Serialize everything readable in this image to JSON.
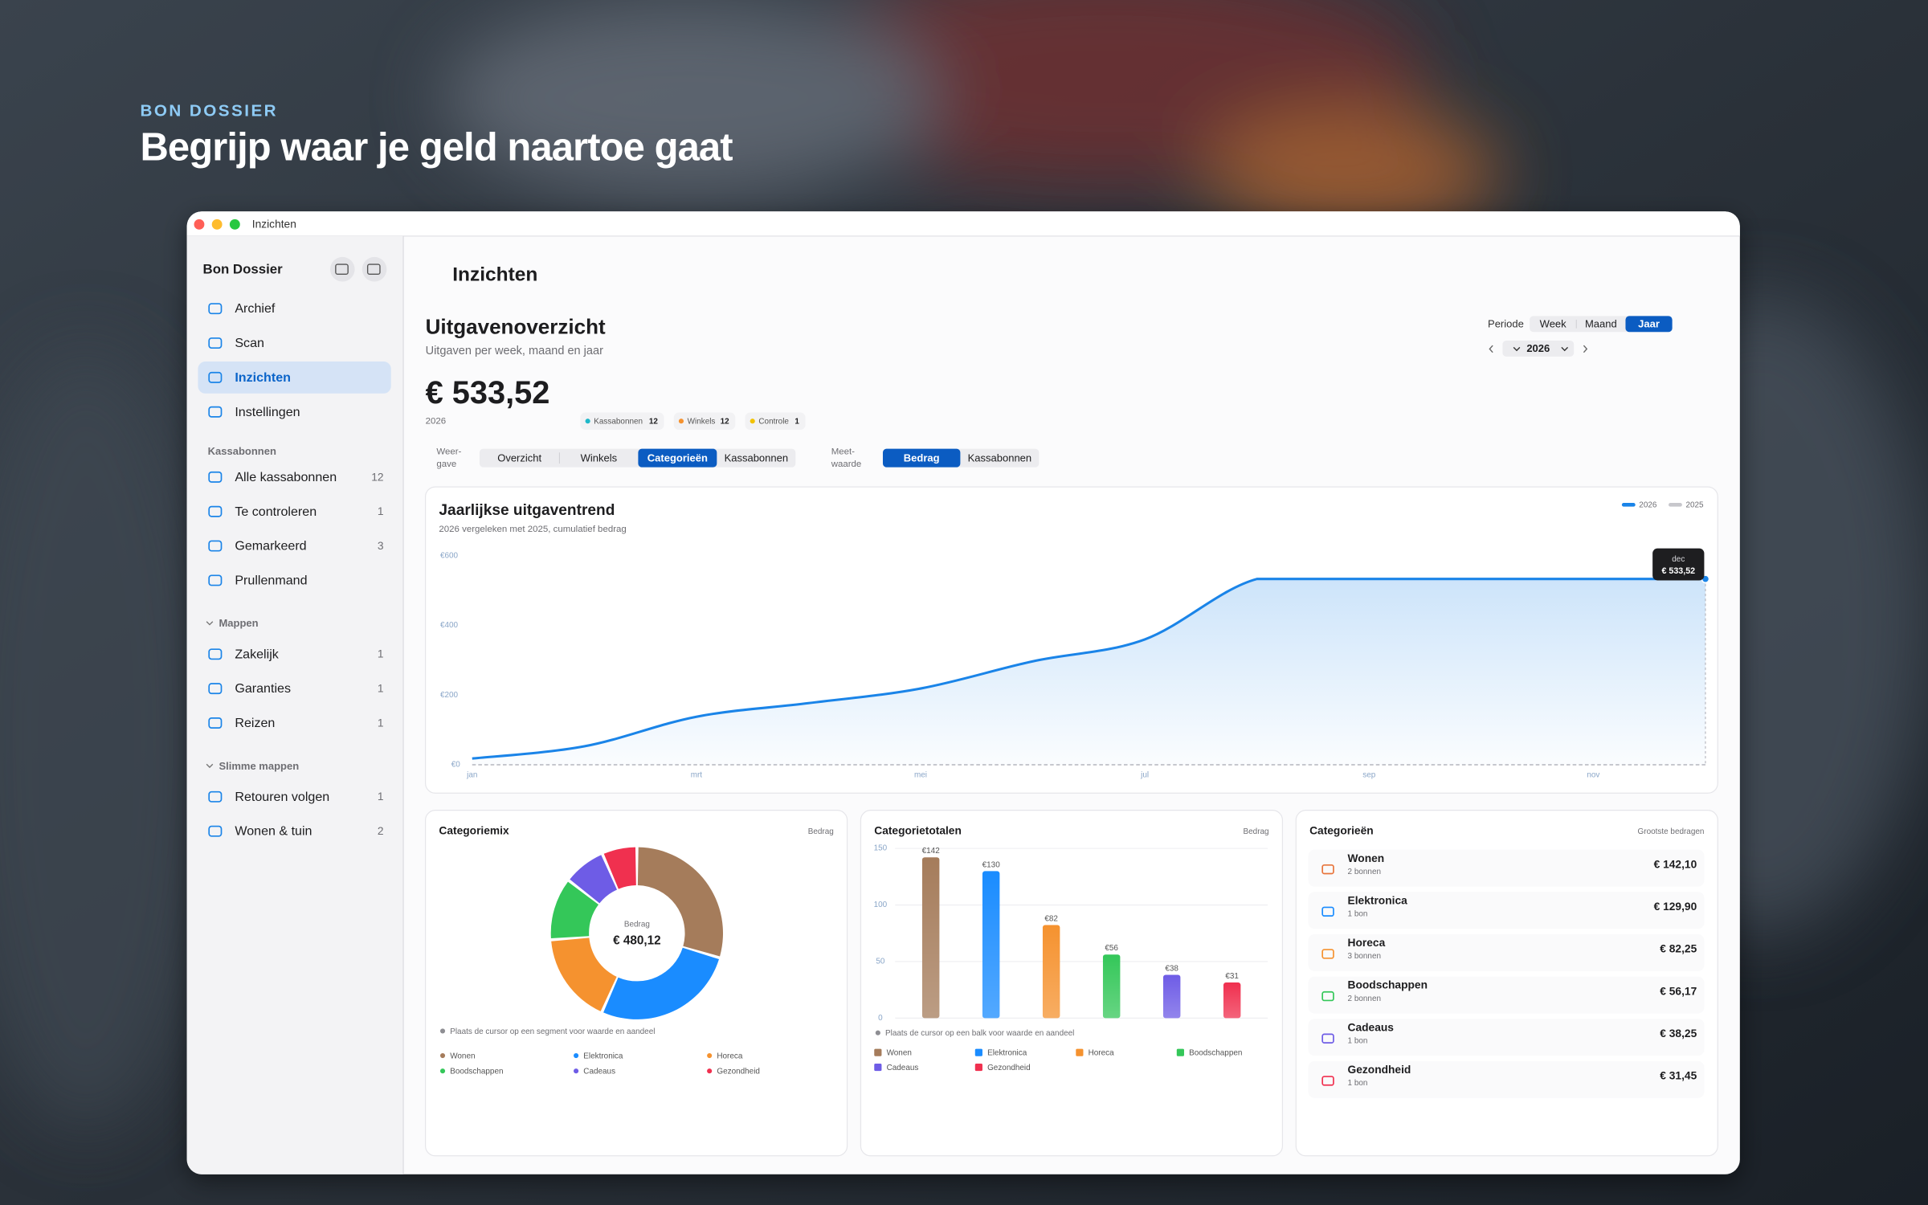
{
  "hero": {
    "eyebrow": "BON DOSSIER",
    "title": "Begrijp waar je geld naartoe gaat"
  },
  "window_title": "Inzichten",
  "sidebar": {
    "app_name": "Bon Dossier",
    "nav": [
      "Archief",
      "Scan",
      "Inzichten",
      "Instellingen"
    ],
    "sections": [
      {
        "title": "Kassabonnen",
        "items": [
          {
            "label": "Alle kassabonnen",
            "count": 12
          },
          {
            "label": "Te controleren",
            "count": 1
          },
          {
            "label": "Gemarkeerd",
            "count": 3
          },
          {
            "label": "Prullenmand"
          }
        ]
      },
      {
        "title": "Mappen",
        "items": [
          {
            "label": "Zakelijk",
            "count": 1
          },
          {
            "label": "Garanties",
            "count": 1
          },
          {
            "label": "Reizen",
            "count": 1
          }
        ]
      },
      {
        "title": "Slimme mappen",
        "items": [
          {
            "label": "Retouren volgen",
            "count": 1
          },
          {
            "label": "Wonen & tuin",
            "count": 2
          }
        ]
      }
    ]
  },
  "page": {
    "title": "Inzichten",
    "heading": "Uitgavenoverzicht",
    "subheading": "Uitgaven per week, maand en jaar",
    "period_label": "Periode",
    "period_options": [
      "Week",
      "Maand",
      "Jaar"
    ],
    "year": "2026",
    "total": "€ 533,52",
    "total_year": "2026",
    "badges": [
      {
        "label": "Kassabonnen",
        "count": 12,
        "color": "#1fb8c9"
      },
      {
        "label": "Winkels",
        "count": 12,
        "color": "#f5922f"
      },
      {
        "label": "Controle",
        "count": 1,
        "color": "#f2c200"
      }
    ],
    "view_label": [
      "Weer-",
      "gave"
    ],
    "view_options": [
      "Overzicht",
      "Winkels",
      "Categorieën",
      "Kassabonnen"
    ],
    "measure_label": [
      "Meet-",
      "waarde"
    ],
    "measure_options": [
      "Bedrag",
      "Kassabonnen"
    ]
  },
  "charts": {
    "trend": {
      "type": "line",
      "title": "Jaarlijkse uitgaventrend",
      "subtitle": "2026 vergeleken met 2025, cumulatief bedrag",
      "categories": [
        "jan",
        null,
        "mrt",
        null,
        "mei",
        null,
        "jul",
        null,
        "sep",
        null,
        "nov",
        null
      ],
      "series": [
        {
          "name": "2026",
          "color": "#1a84e8",
          "values": [
            18,
            53,
            138,
            177,
            219,
            297,
            360,
            533.52,
            533.52,
            533.52,
            533.52,
            533.52
          ]
        },
        {
          "name": "2025",
          "color": "#c7c7cc",
          "values": [
            0,
            0,
            0,
            0,
            0,
            0,
            0,
            0,
            0,
            0,
            0,
            0
          ]
        }
      ],
      "ylim": [
        0,
        600
      ],
      "yticks": [
        {
          "value": 0,
          "label": "€0"
        },
        {
          "value": 200,
          "label": "€200"
        },
        {
          "value": 400,
          "label": "€400"
        },
        {
          "value": 600,
          "label": "€600"
        }
      ],
      "tooltip": {
        "category": "dec",
        "value": "€ 533,52"
      }
    },
    "mix": {
      "type": "pie",
      "title": "Categoriemix",
      "measure": "Bedrag",
      "center_label": "Bedrag",
      "center_value": "€ 480,12",
      "categories": [
        "Wonen",
        "Elektronica",
        "Horeca",
        "Boodschappen",
        "Cadeaus",
        "Gezondheid"
      ],
      "values": [
        142.1,
        129.9,
        82.25,
        56.17,
        38.25,
        31.45
      ],
      "colors": [
        "#a57c5b",
        "#1a8cff",
        "#f5922f",
        "#34c759",
        "#6e5ce6",
        "#f0304f"
      ],
      "hint": "Plaats de cursor op een segment voor waarde en aandeel"
    },
    "totals": {
      "type": "bar",
      "title": "Categorietotalen",
      "measure": "Bedrag",
      "categories": [
        "Wonen",
        "Elektronica",
        "Horeca",
        "Boodschappen",
        "Cadeaus",
        "Gezondheid"
      ],
      "values": [
        142.1,
        129.9,
        82.25,
        56.17,
        38.25,
        31.45
      ],
      "value_labels": [
        "€142",
        "€130",
        "€82",
        "€56",
        "€38",
        "€31"
      ],
      "colors": [
        "#a57c5b",
        "#1a8cff",
        "#f5922f",
        "#34c759",
        "#6e5ce6",
        "#f0304f"
      ],
      "ylim": [
        0,
        150
      ],
      "yticks": [
        0,
        50,
        100,
        150
      ],
      "grid": true,
      "hint": "Plaats de cursor op een balk voor waarde en aandeel"
    },
    "list": {
      "title": "Categorieën",
      "subtitle": "Grootste bedragen",
      "rows": [
        {
          "name": "Wonen",
          "count": "2 bonnen",
          "amount": "€ 142,10",
          "color": "#e8743b"
        },
        {
          "name": "Elektronica",
          "count": "1 bon",
          "amount": "€ 129,90",
          "color": "#1a8cff"
        },
        {
          "name": "Horeca",
          "count": "3 bonnen",
          "amount": "€ 82,25",
          "color": "#f5922f"
        },
        {
          "name": "Boodschappen",
          "count": "2 bonnen",
          "amount": "€ 56,17",
          "color": "#34c759"
        },
        {
          "name": "Cadeaus",
          "count": "1 bon",
          "amount": "€ 38,25",
          "color": "#6e5ce6"
        },
        {
          "name": "Gezondheid",
          "count": "1 bon",
          "amount": "€ 31,45",
          "color": "#f0304f"
        }
      ]
    }
  }
}
